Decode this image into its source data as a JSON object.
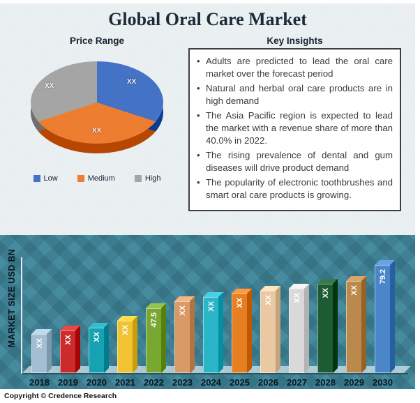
{
  "title": "Global Oral Care Market",
  "headings": {
    "price_range": "Price Range",
    "key_insights": "Key Insights"
  },
  "insights": {
    "bullets": [
      "Adults are predicted to lead the oral care market over the forecast period",
      "Natural and herbal oral care products are in high demand",
      "The Asia Pacific region is expected to lead the market with a revenue share of more than 40.0% in 2022.",
      "The rising prevalence of dental and gum diseases will drive product demand",
      "The popularity of electronic toothbrushes and smart oral care products is growing."
    ]
  },
  "footer": {
    "copyright": "Copyright © Credence Research"
  },
  "chart_data": [
    {
      "type": "pie",
      "title": "Price Range",
      "labels": [
        "Low",
        "Medium",
        "High"
      ],
      "values": [
        30,
        40,
        30
      ],
      "value_labels": [
        "XX",
        "XX",
        "XX"
      ],
      "colors": [
        "#4472c4",
        "#ed7d31",
        "#a5a5a5"
      ],
      "legend_position": "bottom"
    },
    {
      "type": "bar",
      "categories": [
        "2018",
        "2019",
        "2020",
        "2021",
        "2022",
        "2023",
        "2024",
        "2025",
        "2026",
        "2027",
        "2028",
        "2029",
        "2030"
      ],
      "values": [
        28.5,
        31,
        33.5,
        38.5,
        47.5,
        53,
        56,
        58.5,
        60.5,
        62,
        65.5,
        67.5,
        79.2
      ],
      "value_labels": [
        "XX",
        "XX",
        "XX",
        "XX",
        "47.5",
        "XX",
        "XX",
        "XX",
        "XX",
        "XX",
        "XX",
        "XX",
        "79.2"
      ],
      "colors": [
        "#a3bed2",
        "#cc2b2b",
        "#17a2b4",
        "#f1c232",
        "#79a832",
        "#d99a68",
        "#2ab5c9",
        "#e67e22",
        "#eac9a2",
        "#d9d9d9",
        "#1d5b33",
        "#b98a4c",
        "#4a86c8"
      ],
      "ylabel": "MARKET SIZE USD BN",
      "ylim": [
        0,
        85
      ]
    }
  ]
}
